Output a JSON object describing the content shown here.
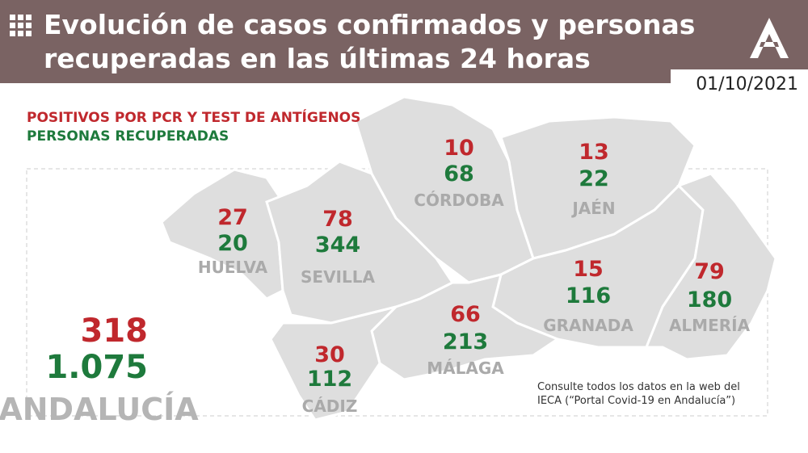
{
  "header": {
    "title_line1": "Evolución de casos confirmados y personas",
    "title_line2": "recuperadas en las últimas 24 horas",
    "date": "01/10/2021"
  },
  "legend": {
    "positives": "POSITIVOS POR PCR Y TEST DE ANTÍGENOS",
    "recovered": "PERSONAS RECUPERADAS"
  },
  "provinces": [
    {
      "name": "HUELVA",
      "positives": "27",
      "recovered": "20"
    },
    {
      "name": "SEVILLA",
      "positives": "78",
      "recovered": "344"
    },
    {
      "name": "CÓRDOBA",
      "positives": "10",
      "recovered": "68"
    },
    {
      "name": "JAÉN",
      "positives": "13",
      "recovered": "22"
    },
    {
      "name": "GRANADA",
      "positives": "15",
      "recovered": "116"
    },
    {
      "name": "ALMERÍA",
      "positives": "79",
      "recovered": "180"
    },
    {
      "name": "MÁLAGA",
      "positives": "66",
      "recovered": "213"
    },
    {
      "name": "CÁDIZ",
      "positives": "30",
      "recovered": "112"
    }
  ],
  "total": {
    "name": "ANDALUCÍA",
    "positives": "318",
    "recovered": "1.075"
  },
  "note": {
    "line1": "Consulte todos los datos en la web del",
    "line2": "IECA (“Portal Covid-19 en Andalucía”)"
  }
}
